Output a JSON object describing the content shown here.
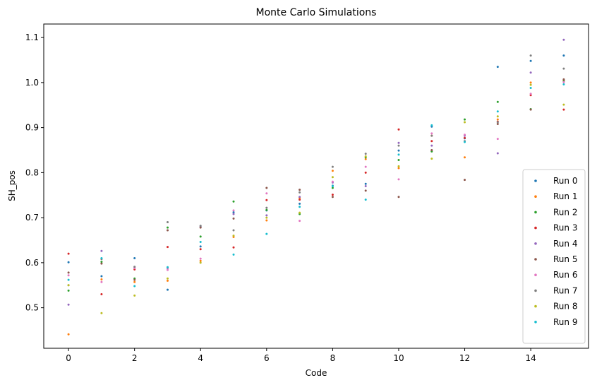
{
  "chart_data": {
    "type": "scatter",
    "title": "Monte Carlo Simulations",
    "xlabel": "Code",
    "ylabel": "SH_pos",
    "xlim": [
      -0.75,
      15.75
    ],
    "ylim": [
      0.41,
      1.13
    ],
    "xticks": [
      0,
      2,
      4,
      6,
      8,
      10,
      12,
      14
    ],
    "yticks": [
      0.5,
      0.6,
      0.7,
      0.8,
      0.9,
      1.0,
      1.1
    ],
    "grid": false,
    "legend_position": "bottom-right",
    "x": [
      0,
      1,
      2,
      3,
      4,
      5,
      6,
      7,
      8,
      9,
      10,
      11,
      12,
      13,
      14,
      15
    ],
    "series": [
      {
        "name": "Run 0",
        "color": "#1f77b4",
        "values": [
          0.601,
          0.57,
          0.61,
          0.54,
          0.636,
          0.712,
          0.716,
          0.731,
          0.771,
          0.775,
          0.849,
          0.902,
          0.876,
          1.035,
          1.048,
          1.06
        ]
      },
      {
        "name": "Run 1",
        "color": "#ff7f0e",
        "values": [
          0.441,
          0.563,
          0.557,
          0.56,
          0.604,
          0.657,
          0.694,
          0.744,
          0.804,
          0.83,
          0.81,
          0.882,
          0.834,
          0.918,
          1.0,
          1.005
        ]
      },
      {
        "name": "Run 2",
        "color": "#2ca02c",
        "values": [
          0.538,
          0.602,
          0.565,
          0.678,
          0.658,
          0.736,
          0.717,
          0.708,
          0.766,
          0.834,
          0.828,
          0.847,
          0.918,
          0.957,
          0.941,
          1.003
        ]
      },
      {
        "name": "Run 3",
        "color": "#d62728",
        "values": [
          0.62,
          0.53,
          0.585,
          0.635,
          0.63,
          0.634,
          0.739,
          0.74,
          0.751,
          0.8,
          0.896,
          0.87,
          0.877,
          0.913,
          0.972,
          0.94
        ]
      },
      {
        "name": "Run 4",
        "color": "#9467bd",
        "values": [
          0.507,
          0.626,
          0.59,
          0.588,
          0.68,
          0.708,
          0.705,
          0.746,
          0.778,
          0.77,
          0.866,
          0.86,
          0.882,
          0.843,
          1.022,
          1.095
        ]
      },
      {
        "name": "Run 5",
        "color": "#8c564b",
        "values": [
          0.578,
          0.598,
          0.562,
          0.672,
          0.678,
          0.698,
          0.766,
          0.762,
          0.746,
          0.76,
          0.746,
          0.85,
          0.784,
          0.908,
          0.94,
          1.007
        ]
      },
      {
        "name": "Run 6",
        "color": "#e377c2",
        "values": [
          0.572,
          0.557,
          0.588,
          0.584,
          0.609,
          0.716,
          0.754,
          0.693,
          0.78,
          0.813,
          0.785,
          0.887,
          0.884,
          0.875,
          0.975,
          1.001
        ]
      },
      {
        "name": "Run 7",
        "color": "#7f7f7f",
        "values": [
          0.55,
          0.608,
          0.591,
          0.69,
          0.682,
          0.672,
          0.722,
          0.756,
          0.813,
          0.842,
          0.86,
          0.882,
          0.87,
          0.912,
          1.06,
          1.031
        ]
      },
      {
        "name": "Run 8",
        "color": "#bcbd22",
        "values": [
          0.55,
          0.488,
          0.527,
          0.565,
          0.6,
          0.66,
          0.7,
          0.711,
          0.79,
          0.836,
          0.814,
          0.831,
          0.912,
          0.925,
          0.995,
          0.951
        ]
      },
      {
        "name": "Run 9",
        "color": "#17becf",
        "values": [
          0.562,
          0.61,
          0.548,
          0.59,
          0.646,
          0.618,
          0.664,
          0.724,
          0.77,
          0.74,
          0.84,
          0.905,
          0.868,
          0.936,
          0.988,
          0.996
        ]
      }
    ]
  }
}
